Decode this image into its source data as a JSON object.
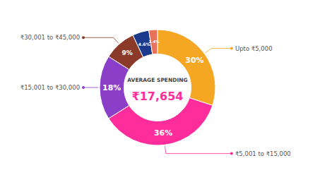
{
  "chart_data": {
    "type": "donut",
    "categories": [
      "Upto ₹5,000",
      "₹5,001 to ₹15,000",
      "₹15,001 to ₹30,000",
      "₹30,001 to ₹45,000",
      null,
      null
    ],
    "values": [
      30,
      36,
      18,
      9,
      4.6,
      2.4
    ],
    "value_labels": [
      "30%",
      "36%",
      "18%",
      "9%",
      "4.6%",
      "2.4%"
    ],
    "colors": [
      "#F5A623",
      "#FF2D9B",
      "#8B3FC8",
      "#8B3A2A",
      "#1B3A8C",
      "#E8725A"
    ],
    "data_labels": true,
    "annotations": [
      {
        "text": "AVERAGE SPENDING"
      },
      {
        "text": "₹17,654",
        "color": "#FF2D9B"
      }
    ]
  }
}
